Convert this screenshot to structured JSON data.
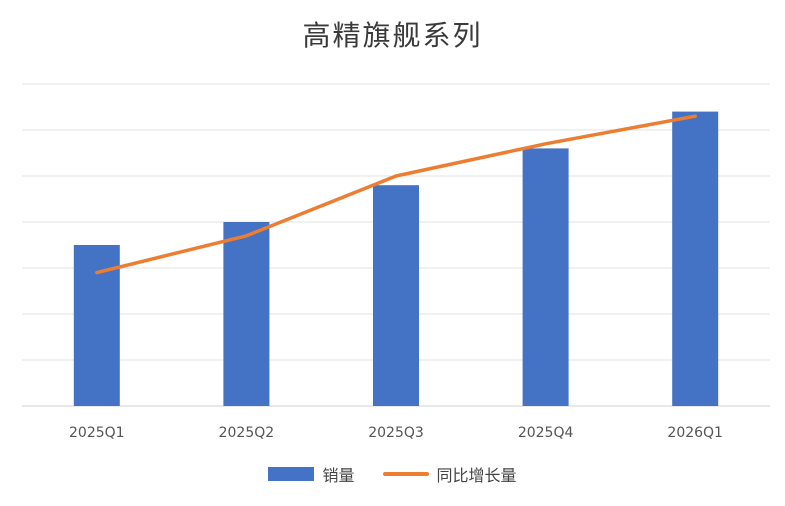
{
  "chart_data": {
    "type": "bar",
    "title": "高精旗舰系列",
    "xlabel": "",
    "ylabel": "",
    "categories": [
      "2025Q1",
      "2025Q2",
      "2025Q3",
      "2025Q4",
      "2026Q1"
    ],
    "ylim": [
      0,
      7
    ],
    "grid": true,
    "legend_position": "bottom",
    "series": [
      {
        "name": "销量",
        "type": "bar",
        "color": "#4472C4",
        "values": [
          3.5,
          4.0,
          4.8,
          5.6,
          6.4
        ]
      },
      {
        "name": "同比增长量",
        "type": "line",
        "color": "#ED7D31",
        "values": [
          2.9,
          3.7,
          5.0,
          5.7,
          6.3
        ]
      }
    ]
  }
}
